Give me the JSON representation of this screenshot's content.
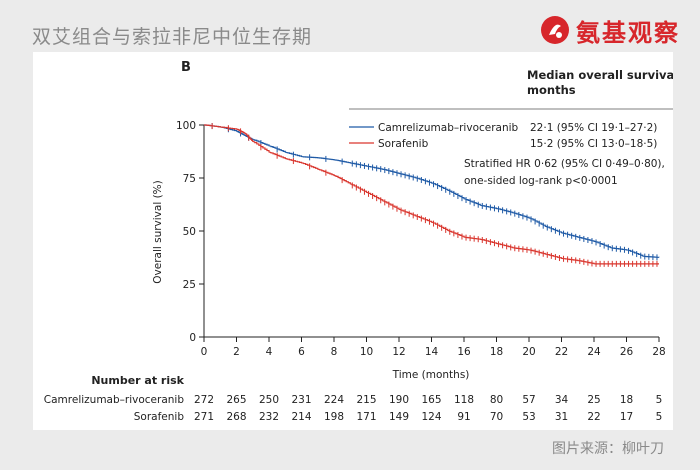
{
  "header": {
    "title": "双艾组合与索拉非尼中位生存期",
    "brand": "氨基观察"
  },
  "caption": "图片来源：柳叶刀",
  "colors": {
    "blue": "#1f5aa6",
    "red": "#d9362e",
    "text": "#222222",
    "axis": "#222222"
  },
  "chart_data": {
    "type": "line",
    "panel_label": "B",
    "xlabel": "Time (months)",
    "ylabel": "Overall survival (%)",
    "xlim": [
      0,
      28
    ],
    "ylim": [
      0,
      100
    ],
    "xticks": [
      0,
      2,
      4,
      6,
      8,
      10,
      12,
      14,
      16,
      18,
      20,
      22,
      24,
      26,
      28
    ],
    "yticks": [
      0,
      25,
      50,
      75,
      100
    ],
    "legend_title": "Median overall survival, months",
    "series": [
      {
        "name": "Camrelizumab–rivoceranib",
        "median": "22·1 (95% CI 19·1–27·2)",
        "color": "#1f5aa6",
        "x": [
          0,
          1,
          2,
          2.5,
          3,
          4,
          5,
          6,
          7,
          8,
          9,
          10,
          11,
          12,
          13,
          14,
          15,
          16,
          17,
          18,
          19,
          20,
          21,
          22,
          23,
          24,
          25,
          26,
          27,
          28
        ],
        "y": [
          100,
          99,
          97,
          95,
          93,
          90,
          87,
          85,
          84.5,
          83.5,
          82,
          80.5,
          79,
          77,
          75,
          72.5,
          69,
          65,
          62,
          60.5,
          58.5,
          56,
          52,
          49,
          47,
          45,
          42,
          41,
          38,
          37.5
        ]
      },
      {
        "name": "Sorafenib",
        "median": "15·2 (95% CI 13·0–18·5)",
        "color": "#d9362e",
        "x": [
          0,
          1,
          2,
          2.5,
          3,
          4,
          5,
          6,
          7,
          8,
          9,
          10,
          11,
          12,
          13,
          14,
          15,
          16,
          17,
          18,
          19,
          20,
          21,
          22,
          23,
          24,
          25,
          26,
          27,
          28
        ],
        "y": [
          100,
          99,
          98,
          96,
          92,
          87,
          84,
          82,
          79,
          76,
          72,
          68,
          64,
          60,
          57,
          54,
          50,
          47,
          46,
          44,
          42,
          41,
          39,
          37,
          36,
          34.5,
          34.5,
          34.5,
          34.5,
          34.5
        ]
      }
    ],
    "annotations": [
      "Stratified HR 0·62 (95% CI 0·49–0·80),",
      "one-sided log-rank p<0·0001"
    ],
    "risk_table": {
      "title": "Number at risk",
      "rows": [
        {
          "label": "Camrelizumab–rivoceranib",
          "values": [
            "272",
            "265",
            "250",
            "231",
            "224",
            "215",
            "190",
            "165",
            "118",
            "80",
            "57",
            "34",
            "25",
            "18",
            "5"
          ]
        },
        {
          "label": "Sorafenib",
          "values": [
            "271",
            "268",
            "232",
            "214",
            "198",
            "171",
            "149",
            "124",
            "91",
            "70",
            "53",
            "31",
            "22",
            "17",
            "5"
          ]
        }
      ]
    }
  }
}
